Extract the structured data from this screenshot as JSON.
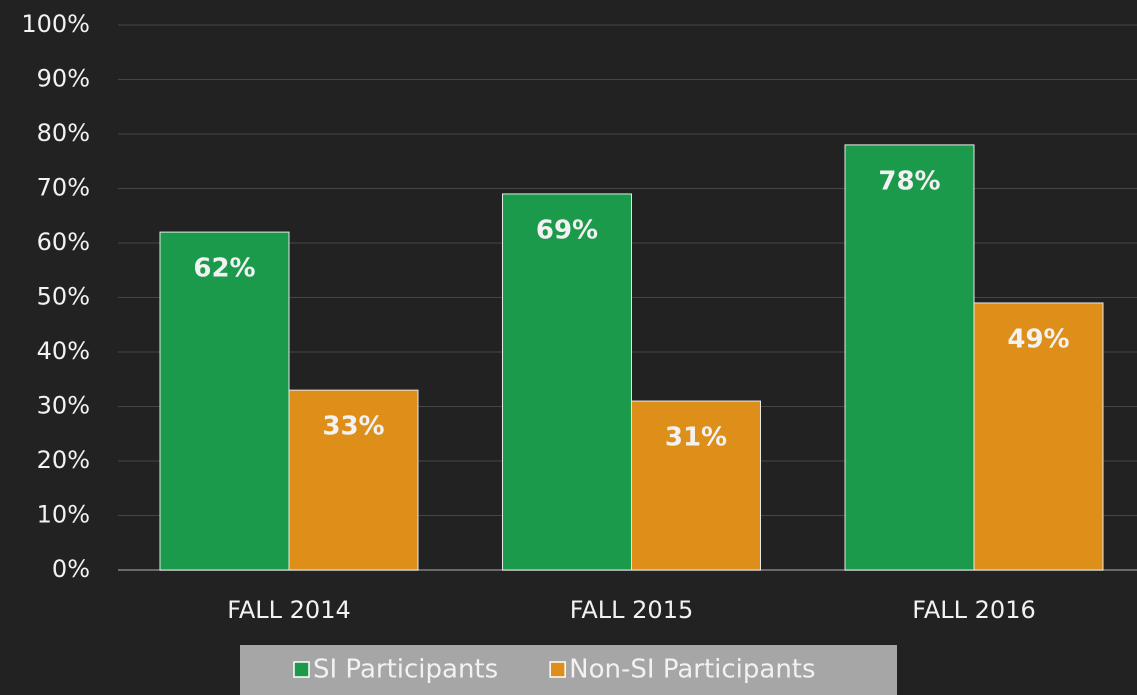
{
  "chart_data": {
    "type": "bar",
    "categories": [
      "FALL 2014",
      "FALL 2015",
      "FALL 2016"
    ],
    "series": [
      {
        "name": "SI Participants",
        "color": "#1a9a4a",
        "values": [
          62,
          69,
          78
        ],
        "value_labels": [
          "62%",
          "69%",
          "78%"
        ]
      },
      {
        "name": "Non-SI Participants",
        "color": "#de8f1a",
        "values": [
          33,
          31,
          49
        ],
        "value_labels": [
          "33%",
          "31%",
          "49%"
        ]
      }
    ],
    "ylim": [
      0,
      100
    ],
    "yticks": [
      {
        "value": 0,
        "label": "0%"
      },
      {
        "value": 10,
        "label": "10%"
      },
      {
        "value": 20,
        "label": "20%"
      },
      {
        "value": 30,
        "label": "30%"
      },
      {
        "value": 40,
        "label": "40%"
      },
      {
        "value": 50,
        "label": "50%"
      },
      {
        "value": 60,
        "label": "60%"
      },
      {
        "value": 70,
        "label": "70%"
      },
      {
        "value": 80,
        "label": "80%"
      },
      {
        "value": 90,
        "label": "90%"
      },
      {
        "value": 100,
        "label": "100%"
      }
    ],
    "grid": true,
    "legend": "bottom"
  }
}
